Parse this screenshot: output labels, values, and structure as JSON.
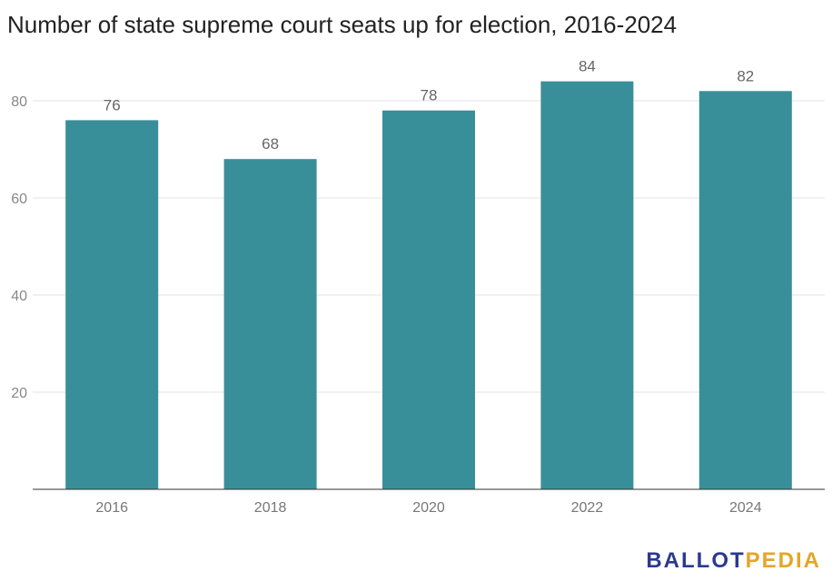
{
  "chart_data": {
    "type": "bar",
    "title": "Number of state supreme court seats up for election, 2016-2024",
    "categories": [
      "2016",
      "2018",
      "2020",
      "2022",
      "2024"
    ],
    "values": [
      76,
      68,
      78,
      84,
      82
    ],
    "data_labels": [
      "76",
      "68",
      "78",
      "84",
      "82"
    ],
    "y_ticks": [
      20,
      40,
      60,
      80
    ],
    "ylim": [
      0,
      90
    ],
    "grid": true,
    "bar_color": "#388f99"
  },
  "logo": {
    "part1": "BALLOT",
    "part2": "PEDIA"
  }
}
